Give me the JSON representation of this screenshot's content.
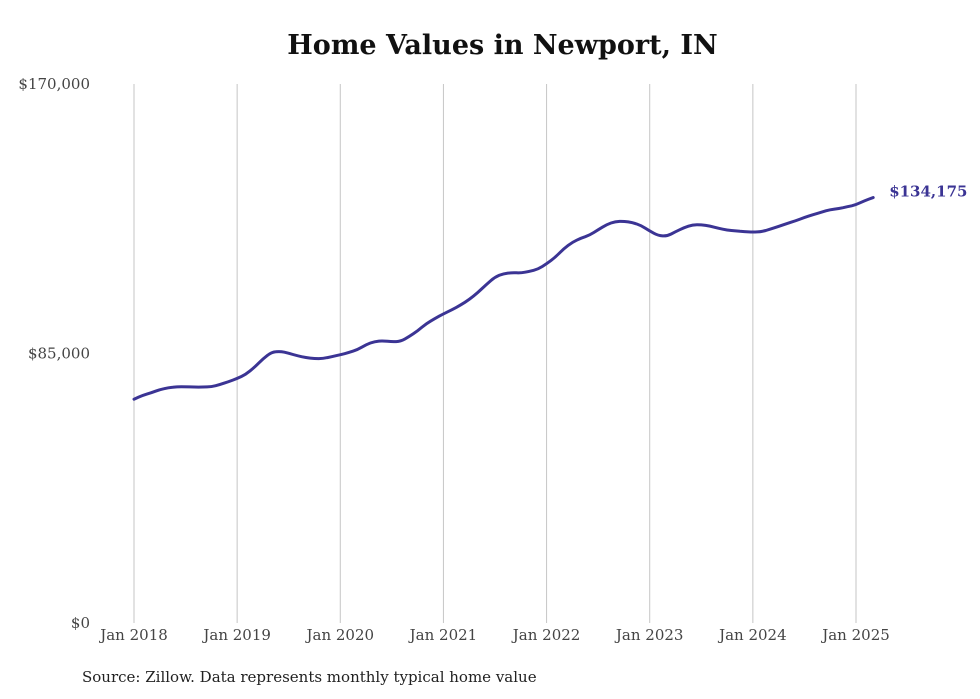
{
  "chart_data": {
    "type": "line",
    "title": "Home Values in Newport, IN",
    "xlabel": "",
    "ylabel": "",
    "ylim": [
      0,
      170000
    ],
    "y_ticks": [
      {
        "value": 0,
        "label": "$0"
      },
      {
        "value": 85000,
        "label": "$85,000"
      },
      {
        "value": 170000,
        "label": "$170,000"
      }
    ],
    "x_ticks": [
      {
        "value": "2018-01",
        "label": "Jan 2018"
      },
      {
        "value": "2019-01",
        "label": "Jan 2019"
      },
      {
        "value": "2020-01",
        "label": "Jan 2020"
      },
      {
        "value": "2021-01",
        "label": "Jan 2021"
      },
      {
        "value": "2022-01",
        "label": "Jan 2022"
      },
      {
        "value": "2023-01",
        "label": "Jan 2023"
      },
      {
        "value": "2024-01",
        "label": "Jan 2024"
      },
      {
        "value": "2025-01",
        "label": "Jan 2025"
      }
    ],
    "vertical_grid": true,
    "horizontal_grid": false,
    "line_color": "#3b3494",
    "end_label": "$134,175",
    "series": [
      {
        "x": [
          "2018-01",
          "2018-02",
          "2018-03",
          "2018-04",
          "2018-05",
          "2018-06",
          "2018-07",
          "2018-08",
          "2018-09",
          "2018-10",
          "2018-11",
          "2018-12",
          "2019-01",
          "2019-02",
          "2019-03",
          "2019-04",
          "2019-05",
          "2019-06",
          "2019-07",
          "2019-08",
          "2019-09",
          "2019-10",
          "2019-11",
          "2019-12",
          "2020-01",
          "2020-02",
          "2020-03",
          "2020-04",
          "2020-05",
          "2020-06",
          "2020-07",
          "2020-08",
          "2020-09",
          "2020-10",
          "2020-11",
          "2020-12",
          "2021-01",
          "2021-02",
          "2021-03",
          "2021-04",
          "2021-05",
          "2021-06",
          "2021-07",
          "2021-08",
          "2021-09",
          "2021-10",
          "2021-11",
          "2021-12",
          "2022-01",
          "2022-02",
          "2022-03",
          "2022-04",
          "2022-05",
          "2022-06",
          "2022-07",
          "2022-08",
          "2022-09",
          "2022-10",
          "2022-11",
          "2022-12",
          "2023-01",
          "2023-02",
          "2023-03",
          "2023-04",
          "2023-05",
          "2023-06",
          "2023-07",
          "2023-08",
          "2023-09",
          "2023-10",
          "2023-11",
          "2023-12",
          "2024-01",
          "2024-02",
          "2024-03",
          "2024-04",
          "2024-05",
          "2024-06",
          "2024-07",
          "2024-08",
          "2024-09",
          "2024-10",
          "2024-11",
          "2024-12",
          "2025-01",
          "2025-02",
          "2025-03"
        ],
        "values": [
          70600,
          71800,
          72600,
          73600,
          74200,
          74500,
          74500,
          74400,
          74400,
          74500,
          75200,
          76100,
          77100,
          78400,
          80600,
          83300,
          85400,
          85700,
          85100,
          84300,
          83700,
          83400,
          83400,
          84000,
          84600,
          85300,
          86200,
          87800,
          88800,
          89000,
          88700,
          88800,
          90300,
          92100,
          94400,
          96000,
          97500,
          98800,
          100300,
          102000,
          104200,
          106800,
          109100,
          110200,
          110500,
          110400,
          110900,
          111600,
          113300,
          115300,
          118100,
          120100,
          121400,
          122300,
          124000,
          125700,
          126600,
          126700,
          126300,
          125400,
          123600,
          122200,
          122000,
          123400,
          124700,
          125600,
          125600,
          125200,
          124500,
          123900,
          123700,
          123400,
          123300,
          123400,
          124200,
          125100,
          126000,
          126900,
          127900,
          128800,
          129600,
          130400,
          130700,
          131300,
          131900,
          133200,
          134175
        ]
      }
    ]
  },
  "source_note": "Source: Zillow. Data represents monthly typical home value"
}
